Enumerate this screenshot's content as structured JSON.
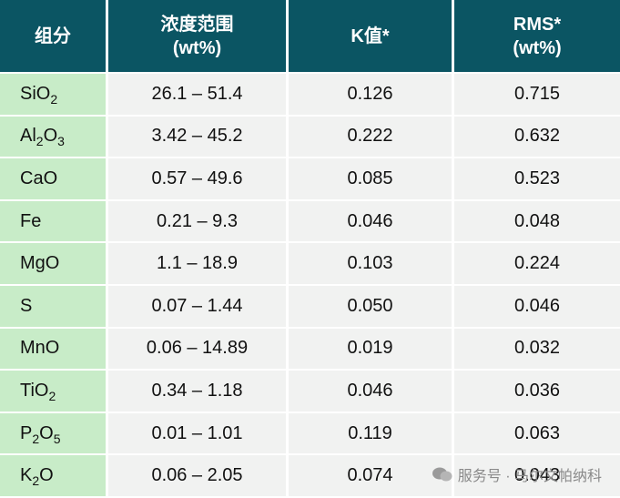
{
  "table": {
    "header": [
      [
        "组分"
      ],
      [
        "浓度范围",
        "(wt%)"
      ],
      [
        "K值*"
      ],
      [
        "RMS*",
        "(wt%)"
      ]
    ],
    "rows": [
      [
        [
          "SiO",
          "2"
        ],
        "26.1 – 51.4",
        "0.126",
        "0.715"
      ],
      [
        [
          "Al",
          "2",
          "O",
          "3"
        ],
        "3.42 – 45.2",
        "0.222",
        "0.632"
      ],
      [
        [
          "CaO"
        ],
        "0.57 – 49.6",
        "0.085",
        "0.523"
      ],
      [
        [
          "Fe"
        ],
        "0.21 – 9.3",
        "0.046",
        "0.048"
      ],
      [
        [
          "MgO"
        ],
        "1.1 – 18.9",
        "0.103",
        "0.224"
      ],
      [
        [
          "S"
        ],
        "0.07 – 1.44",
        "0.050",
        "0.046"
      ],
      [
        [
          "MnO"
        ],
        "0.06 – 14.89",
        "0.019",
        "0.032"
      ],
      [
        [
          "TiO",
          "2"
        ],
        "0.34 – 1.18",
        "0.046",
        "0.036"
      ],
      [
        [
          "P",
          "2",
          "O",
          "5"
        ],
        "0.01 – 1.01",
        "0.119",
        "0.063"
      ],
      [
        [
          "K",
          "2",
          "O"
        ],
        "0.06 – 2.05",
        "0.074",
        "0.043"
      ]
    ]
  },
  "watermark": "服务号 · 马尔文帕纳科"
}
